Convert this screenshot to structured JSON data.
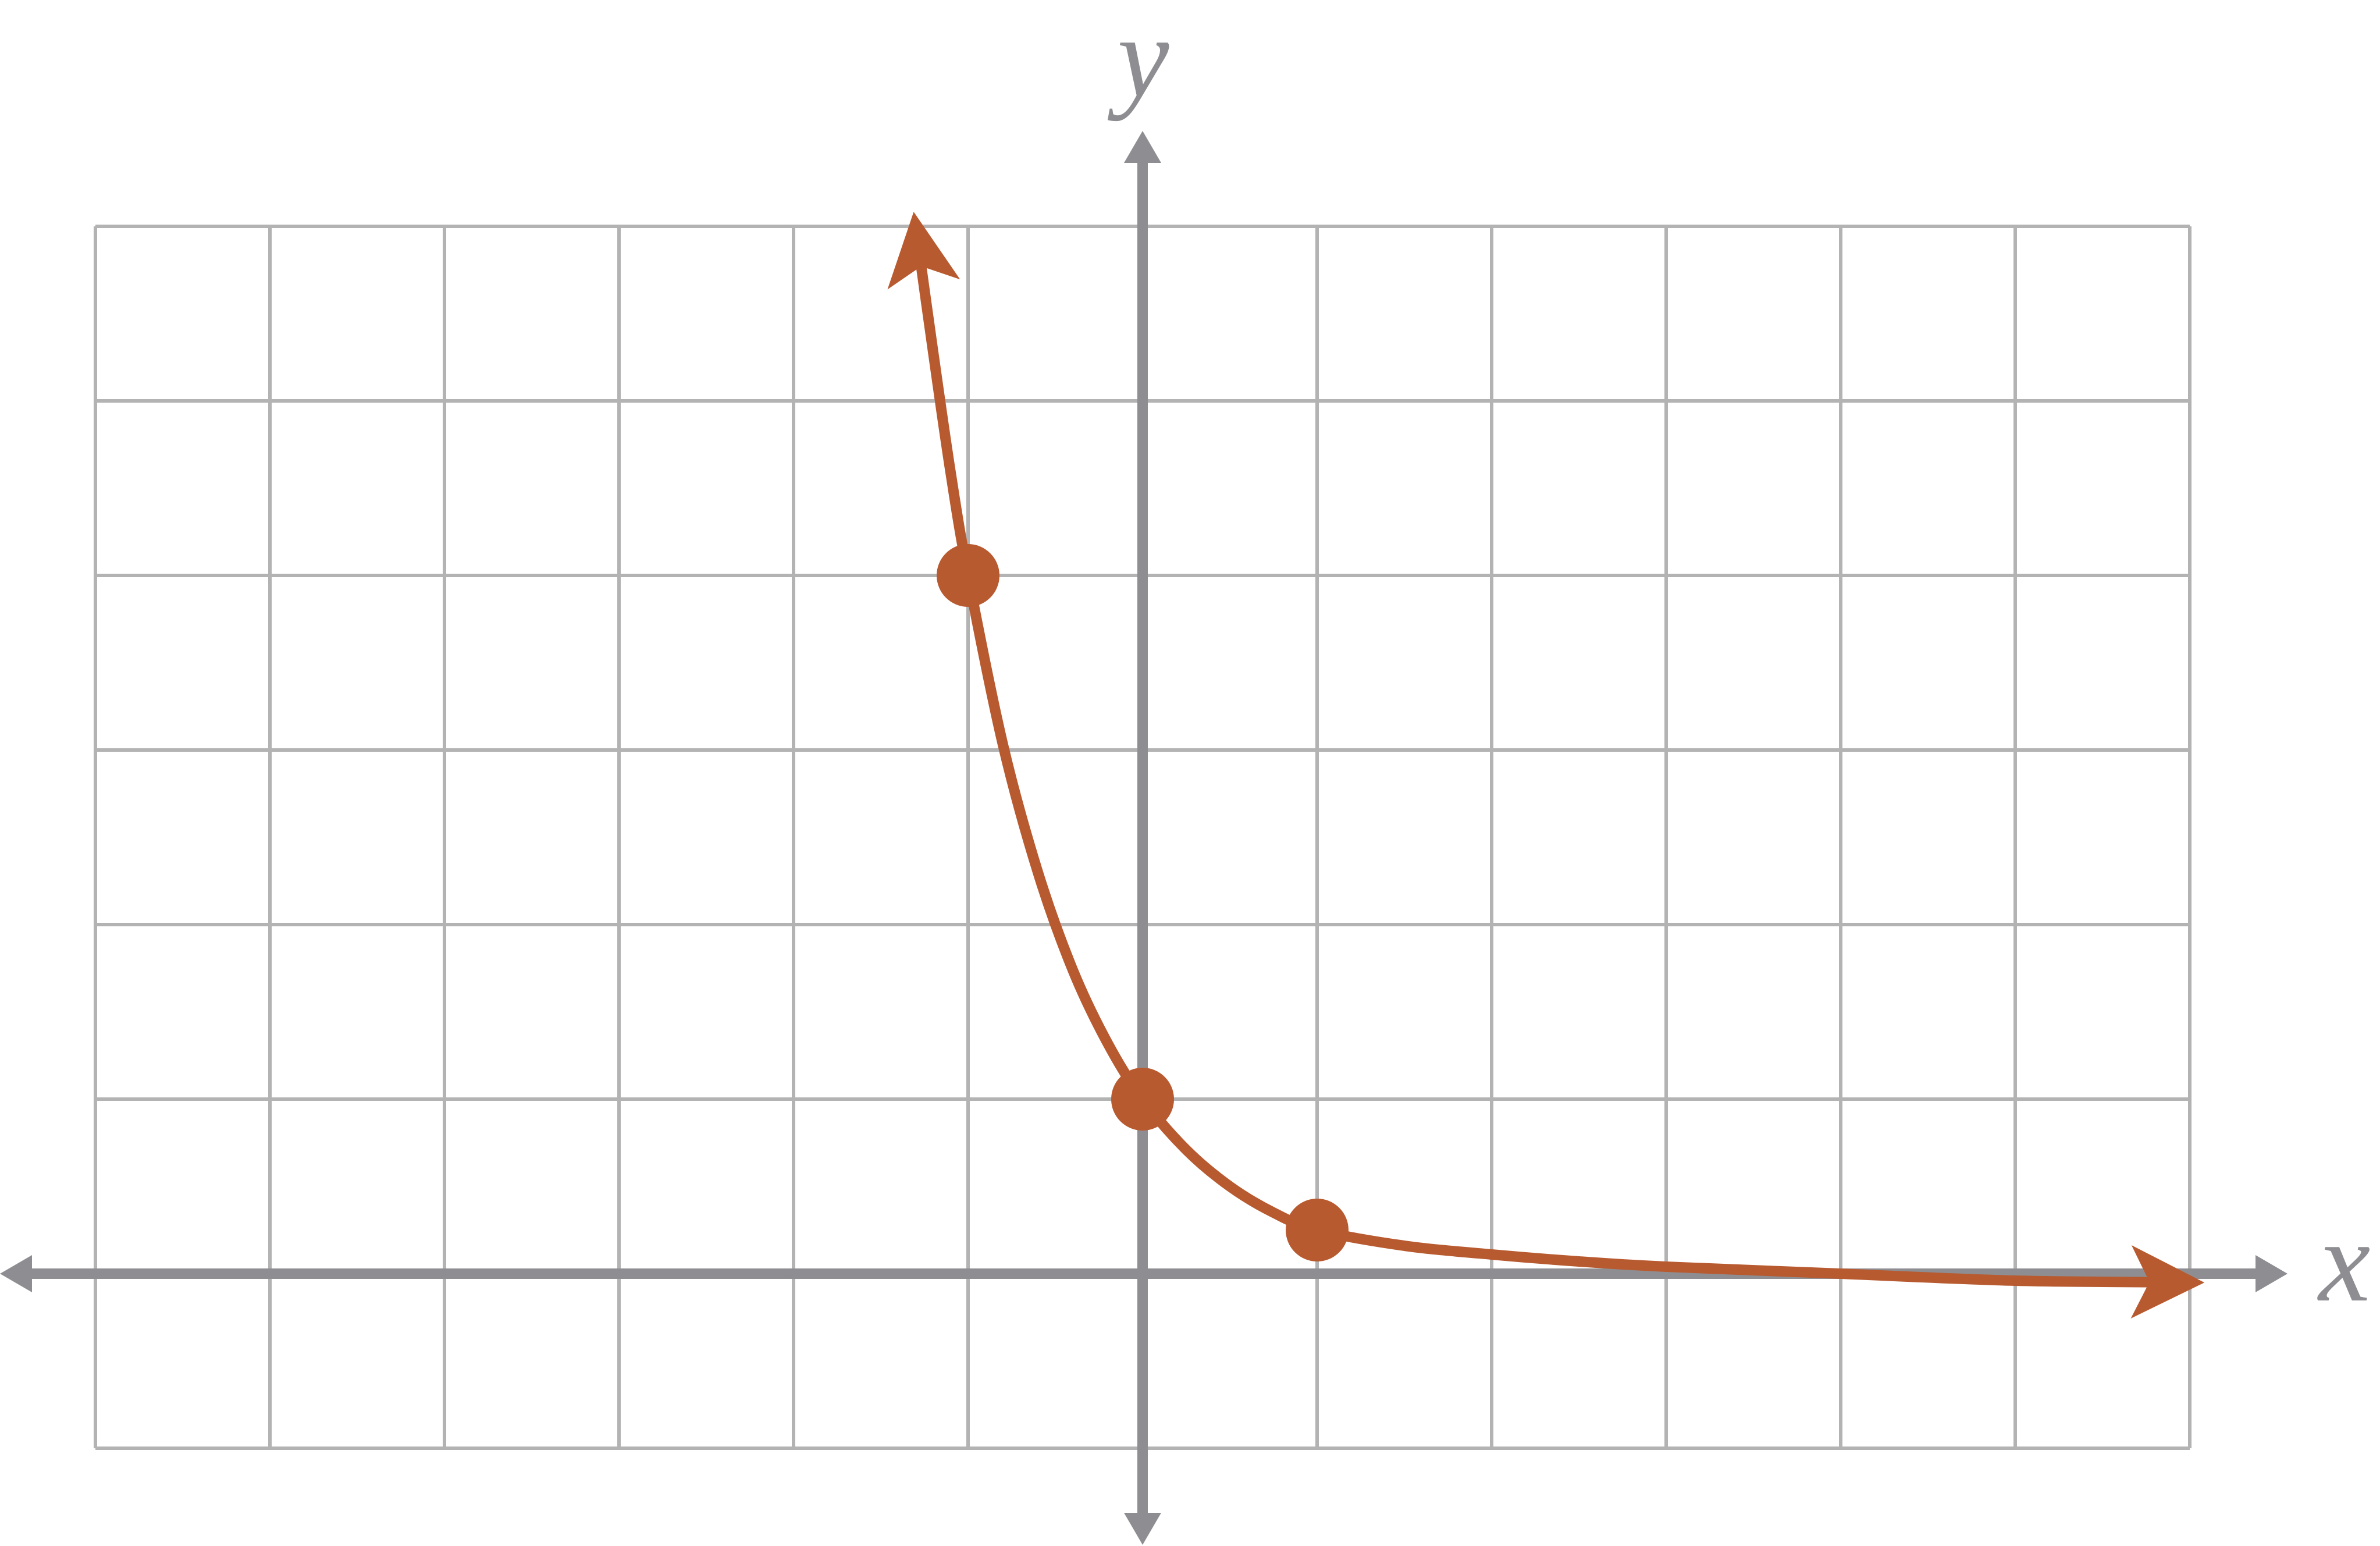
{
  "chart_data": {
    "type": "line",
    "x_label": "x",
    "y_label": "y",
    "xlim": [
      -6,
      6
    ],
    "ylim": [
      -1,
      6
    ],
    "xticks": [
      -6,
      -5,
      -4,
      -3,
      -2,
      -1,
      0,
      1,
      2,
      3,
      4,
      5,
      6
    ],
    "yticks": [
      -1,
      0,
      1,
      2,
      3,
      4,
      5,
      6
    ],
    "grid": true,
    "grid_color": "#b3b3b3",
    "axis_color": "#8e8e92",
    "series": [
      {
        "type": "line",
        "color": "#b85a30",
        "arrows": true,
        "x": [
          -1.3,
          -1.2,
          -1.1,
          -1,
          -0.8,
          -0.6,
          -0.4,
          -0.2,
          0,
          0.25,
          0.5,
          0.75,
          1,
          1.5,
          2,
          2.5,
          3,
          4,
          5,
          6
        ],
        "values": [
          6,
          5.28,
          4.59,
          4,
          3.03,
          2.3,
          1.74,
          1.32,
          1,
          0.71,
          0.5,
          0.35,
          0.25,
          0.16,
          0.11,
          0.07,
          0.04,
          0,
          -0.04,
          -0.05
        ]
      },
      {
        "type": "scatter",
        "color": "#b85a30",
        "x": [
          -1,
          0,
          1
        ],
        "values": [
          4,
          1,
          0.25
        ]
      }
    ]
  }
}
